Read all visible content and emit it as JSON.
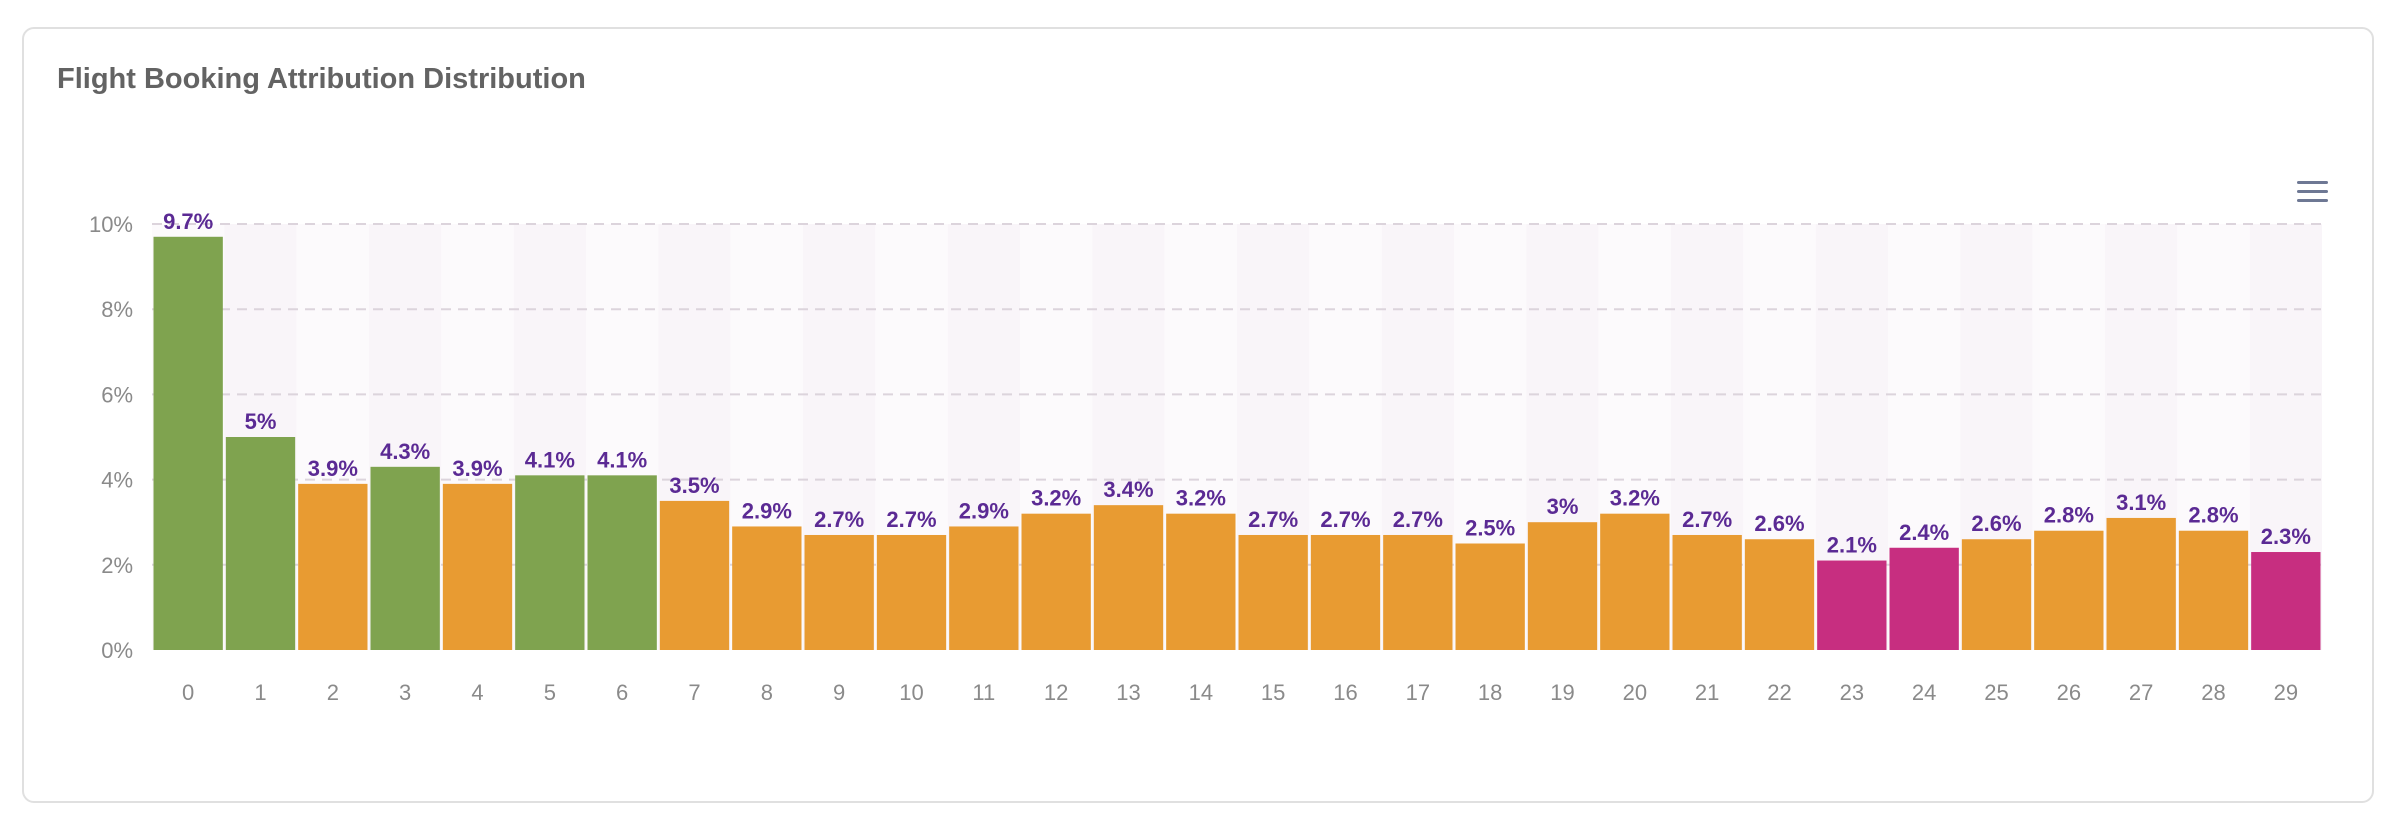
{
  "chart_data": {
    "type": "bar",
    "title": "Flight Booking Attribution Distribution",
    "xlabel": "",
    "ylabel": "",
    "ylim": [
      0,
      10
    ],
    "y_ticks": [
      "0%",
      "2%",
      "4%",
      "6%",
      "8%",
      "10%"
    ],
    "y_tick_values": [
      0,
      2,
      4,
      6,
      8,
      10
    ],
    "grid": true,
    "legend": "none",
    "categories": [
      "0",
      "1",
      "2",
      "3",
      "4",
      "5",
      "6",
      "7",
      "8",
      "9",
      "10",
      "11",
      "12",
      "13",
      "14",
      "15",
      "16",
      "17",
      "18",
      "19",
      "20",
      "21",
      "22",
      "23",
      "24",
      "25",
      "26",
      "27",
      "28",
      "29"
    ],
    "values": [
      9.7,
      5,
      3.9,
      4.3,
      3.9,
      4.1,
      4.1,
      3.5,
      2.9,
      2.7,
      2.7,
      2.9,
      3.2,
      3.4,
      3.2,
      2.7,
      2.7,
      2.7,
      2.5,
      3,
      3.2,
      2.7,
      2.6,
      2.1,
      2.4,
      2.6,
      2.8,
      3.1,
      2.8,
      2.3
    ],
    "labels": [
      "9.7%",
      "5%",
      "3.9%",
      "4.3%",
      "3.9%",
      "4.1%",
      "4.1%",
      "3.5%",
      "2.9%",
      "2.7%",
      "2.7%",
      "2.9%",
      "3.2%",
      "3.4%",
      "3.2%",
      "2.7%",
      "2.7%",
      "2.7%",
      "2.5%",
      "3%",
      "3.2%",
      "2.7%",
      "2.6%",
      "2.1%",
      "2.4%",
      "2.6%",
      "2.8%",
      "3.1%",
      "2.8%",
      "2.3%"
    ],
    "bar_colors": [
      "#7fa34f",
      "#7fa34f",
      "#e89b32",
      "#7fa34f",
      "#e89b32",
      "#7fa34f",
      "#7fa34f",
      "#e89b32",
      "#e89b32",
      "#e89b32",
      "#e89b32",
      "#e89b32",
      "#e89b32",
      "#e89b32",
      "#e89b32",
      "#e89b32",
      "#e89b32",
      "#e89b32",
      "#e89b32",
      "#e89b32",
      "#e89b32",
      "#e89b32",
      "#e89b32",
      "#c72e80",
      "#c72e80",
      "#e89b32",
      "#e89b32",
      "#e89b32",
      "#e89b32",
      "#c72e80"
    ],
    "colors": {
      "green": "#7fa34f",
      "orange": "#e89b32",
      "magenta": "#c72e80",
      "label": "#5b2a94",
      "grid": "#dcd4dc",
      "plot_band_a": "#fcfafc",
      "plot_band_b": "#f9f5f9"
    }
  },
  "toolbar": {
    "menu_icon": "hamburger-menu-icon"
  }
}
